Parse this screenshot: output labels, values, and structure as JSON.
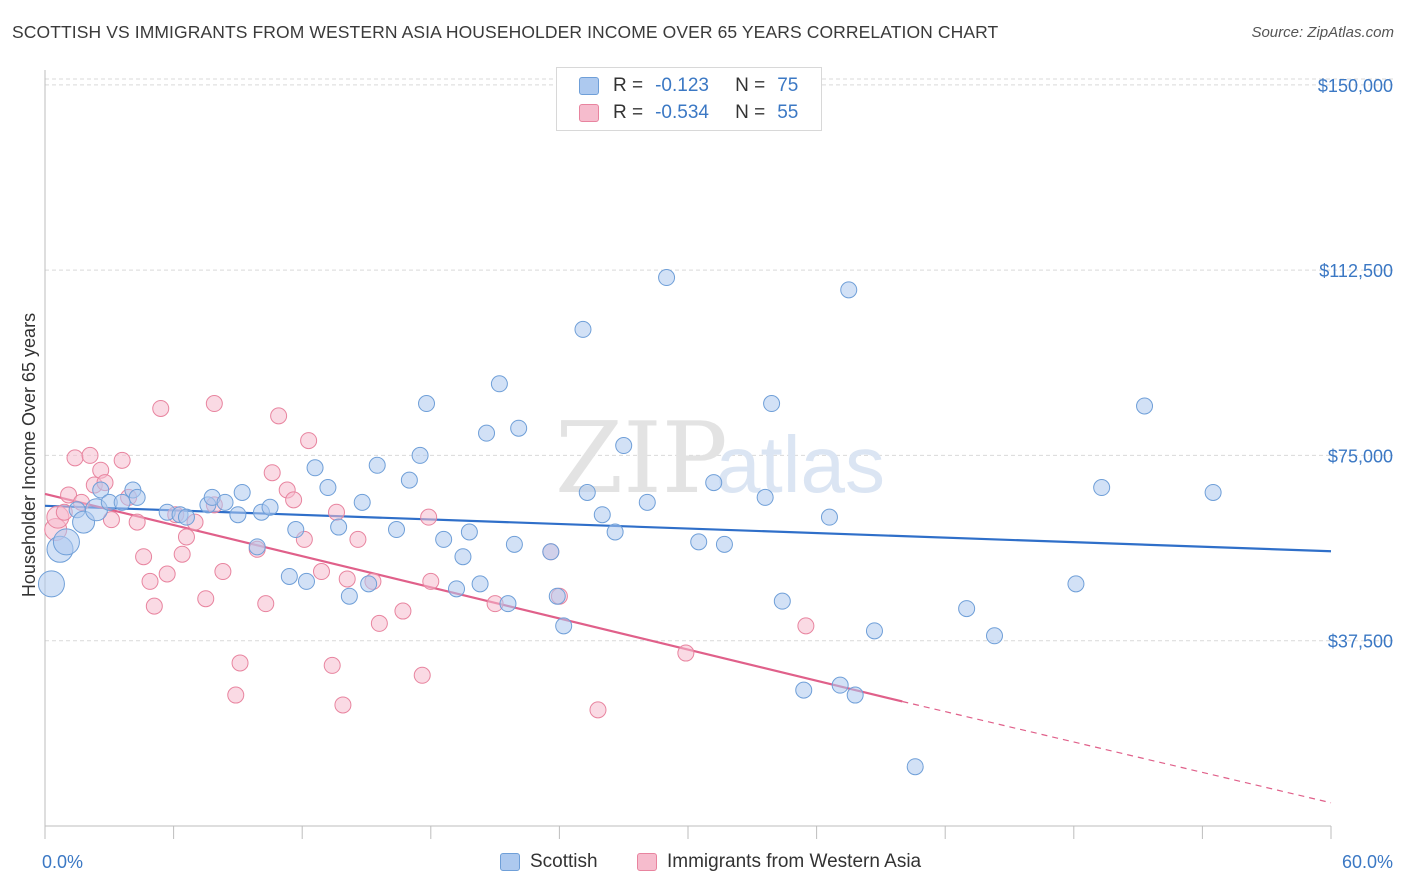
{
  "title": "SCOTTISH VS IMMIGRANTS FROM WESTERN ASIA HOUSEHOLDER INCOME OVER 65 YEARS CORRELATION CHART",
  "source": "Source: ZipAtlas.com",
  "watermark": {
    "zip": "ZIP",
    "atlas": "atlas"
  },
  "legend_top": [
    {
      "r_label": "R =",
      "r_value": "-0.123",
      "n_label": "N =",
      "n_value": "75"
    },
    {
      "r_label": "R =",
      "r_value": "-0.534",
      "n_label": "N =",
      "n_value": "55"
    }
  ],
  "x_axis": {
    "min_label": "0.0%",
    "max_label": "60.0%"
  },
  "colors": {
    "blue_fill": "#adc9ef",
    "blue_stroke": "#6f9fd8",
    "blue_line": "#2f6fc9",
    "pink_fill": "#f6bccd",
    "pink_stroke": "#e8849f",
    "pink_line": "#e0608a",
    "accent_text": "#3b78c4",
    "grid": "#d9d9d9"
  },
  "chart_data": {
    "type": "scatter",
    "xlabel": "",
    "ylabel": "Householder Income Over 65 years",
    "xlim": [
      0,
      60
    ],
    "ylim": [
      0,
      153000
    ],
    "y_ticks": [
      {
        "value": 37500,
        "label": "$37,500"
      },
      {
        "value": 75000,
        "label": "$75,000"
      },
      {
        "value": 112500,
        "label": "$112,500"
      },
      {
        "value": 150000,
        "label": "$150,000"
      }
    ],
    "grid": true,
    "legend_position": "bottom",
    "series": [
      {
        "name": "Scottish",
        "color": "#6f9fd8",
        "points": [
          [
            0.3,
            49000
          ],
          [
            0.7,
            56000
          ],
          [
            1.0,
            57500
          ],
          [
            1.5,
            64000
          ],
          [
            1.8,
            61500
          ],
          [
            2.4,
            64000
          ],
          [
            2.6,
            68000
          ],
          [
            3.0,
            65500
          ],
          [
            3.6,
            65500
          ],
          [
            4.1,
            68000
          ],
          [
            4.3,
            66500
          ],
          [
            5.7,
            63500
          ],
          [
            6.3,
            63000
          ],
          [
            6.6,
            62500
          ],
          [
            7.6,
            65000
          ],
          [
            7.8,
            66500
          ],
          [
            8.4,
            65500
          ],
          [
            9.0,
            63000
          ],
          [
            9.2,
            67500
          ],
          [
            9.9,
            56500
          ],
          [
            10.1,
            63500
          ],
          [
            10.5,
            64500
          ],
          [
            11.4,
            50500
          ],
          [
            11.7,
            60000
          ],
          [
            12.2,
            49500
          ],
          [
            12.6,
            72500
          ],
          [
            13.2,
            68500
          ],
          [
            13.7,
            60500
          ],
          [
            14.2,
            46500
          ],
          [
            14.8,
            65500
          ],
          [
            15.1,
            49000
          ],
          [
            15.5,
            73000
          ],
          [
            16.4,
            60000
          ],
          [
            17.0,
            70000
          ],
          [
            17.5,
            75000
          ],
          [
            17.8,
            85500
          ],
          [
            18.6,
            58000
          ],
          [
            19.2,
            48000
          ],
          [
            19.5,
            54500
          ],
          [
            19.8,
            59500
          ],
          [
            20.3,
            49000
          ],
          [
            20.6,
            79500
          ],
          [
            21.2,
            89500
          ],
          [
            21.6,
            45000
          ],
          [
            21.9,
            57000
          ],
          [
            22.1,
            80500
          ],
          [
            23.6,
            55500
          ],
          [
            23.9,
            46500
          ],
          [
            24.2,
            40500
          ],
          [
            25.1,
            100500
          ],
          [
            25.3,
            67500
          ],
          [
            26.0,
            63000
          ],
          [
            26.6,
            59500
          ],
          [
            27.0,
            77000
          ],
          [
            28.1,
            65500
          ],
          [
            29.0,
            111000
          ],
          [
            30.5,
            57500
          ],
          [
            31.2,
            69500
          ],
          [
            31.7,
            57000
          ],
          [
            33.6,
            66500
          ],
          [
            33.9,
            85500
          ],
          [
            34.4,
            45500
          ],
          [
            35.4,
            27500
          ],
          [
            36.6,
            62500
          ],
          [
            37.1,
            28500
          ],
          [
            37.5,
            108500
          ],
          [
            37.8,
            26500
          ],
          [
            38.7,
            39500
          ],
          [
            40.6,
            12000
          ],
          [
            43.0,
            44000
          ],
          [
            44.3,
            38500
          ],
          [
            48.1,
            49000
          ],
          [
            49.3,
            68500
          ],
          [
            51.3,
            85000
          ],
          [
            54.5,
            67500
          ]
        ],
        "trend": {
          "x": [
            0,
            60
          ],
          "y": [
            64800,
            55600
          ]
        }
      },
      {
        "name": "Immigrants from Western Asia",
        "color": "#e8849f",
        "points": [
          [
            0.5,
            60000
          ],
          [
            0.6,
            62500
          ],
          [
            0.9,
            63500
          ],
          [
            1.1,
            67000
          ],
          [
            1.4,
            74500
          ],
          [
            1.7,
            65500
          ],
          [
            2.1,
            75000
          ],
          [
            2.3,
            69000
          ],
          [
            2.6,
            72000
          ],
          [
            2.8,
            69500
          ],
          [
            3.1,
            62000
          ],
          [
            3.6,
            74000
          ],
          [
            3.9,
            66500
          ],
          [
            4.3,
            61500
          ],
          [
            4.6,
            54500
          ],
          [
            4.9,
            49500
          ],
          [
            5.1,
            44500
          ],
          [
            5.4,
            84500
          ],
          [
            5.7,
            51000
          ],
          [
            6.1,
            63000
          ],
          [
            6.4,
            55000
          ],
          [
            6.6,
            58500
          ],
          [
            7.0,
            61500
          ],
          [
            7.5,
            46000
          ],
          [
            7.9,
            65000
          ],
          [
            7.9,
            85500
          ],
          [
            8.3,
            51500
          ],
          [
            8.9,
            26500
          ],
          [
            9.1,
            33000
          ],
          [
            9.9,
            56000
          ],
          [
            10.3,
            45000
          ],
          [
            10.6,
            71500
          ],
          [
            10.9,
            83000
          ],
          [
            11.3,
            68000
          ],
          [
            11.6,
            66000
          ],
          [
            12.1,
            58000
          ],
          [
            12.3,
            78000
          ],
          [
            12.9,
            51500
          ],
          [
            13.4,
            32500
          ],
          [
            13.6,
            63500
          ],
          [
            13.9,
            24500
          ],
          [
            14.1,
            50000
          ],
          [
            14.6,
            58000
          ],
          [
            15.3,
            49500
          ],
          [
            15.6,
            41000
          ],
          [
            16.7,
            43500
          ],
          [
            17.6,
            30500
          ],
          [
            17.9,
            62500
          ],
          [
            18.0,
            49500
          ],
          [
            21.0,
            45000
          ],
          [
            23.6,
            55500
          ],
          [
            24.0,
            46500
          ],
          [
            25.8,
            23500
          ],
          [
            29.9,
            35000
          ],
          [
            35.5,
            40500
          ]
        ],
        "trend": {
          "x": [
            0,
            40
          ],
          "y": [
            67200,
            25200
          ]
        },
        "trend_dashed": {
          "x": [
            40,
            60
          ],
          "y": [
            25200,
            4700
          ]
        }
      }
    ]
  }
}
